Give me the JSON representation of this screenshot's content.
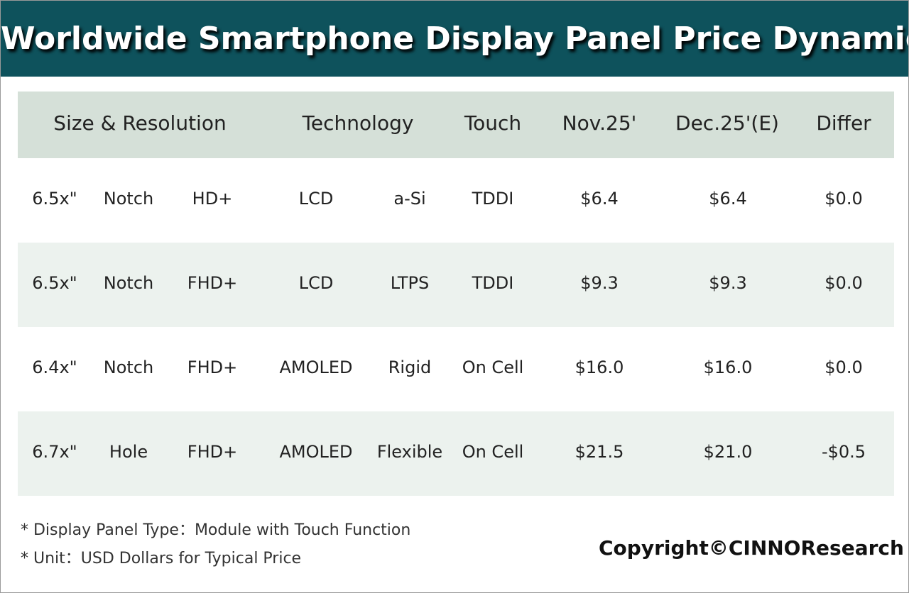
{
  "header": {
    "title": "Worldwide Smartphone Display Panel Price Dynamic"
  },
  "table": {
    "headers": [
      "Size & Resolution",
      "Technology",
      "Touch",
      "Nov.25'",
      "Dec.25'(E)",
      "Differ"
    ],
    "rows": [
      [
        "6.5x\"",
        "Notch",
        "HD+",
        "LCD",
        "a-Si",
        "TDDI",
        "$6.4",
        "$6.4",
        "$0.0"
      ],
      [
        "6.5x\"",
        "Notch",
        "FHD+",
        "LCD",
        "LTPS",
        "TDDI",
        "$9.3",
        "$9.3",
        "$0.0"
      ],
      [
        "6.4x\"",
        "Notch",
        "FHD+",
        "AMOLED",
        "Rigid",
        "On Cell",
        "$16.0",
        "$16.0",
        "$0.0"
      ],
      [
        "6.7x\"",
        "Hole",
        "FHD+",
        "AMOLED",
        "Flexible",
        "On Cell",
        "$21.5",
        "$21.0",
        "-$0.5"
      ]
    ]
  },
  "notes": [
    "* Display Panel Type：Module with Touch Function",
    "* Unit：USD Dollars for Typical Price"
  ],
  "copyright": "Copyright©CINNOResearch"
}
